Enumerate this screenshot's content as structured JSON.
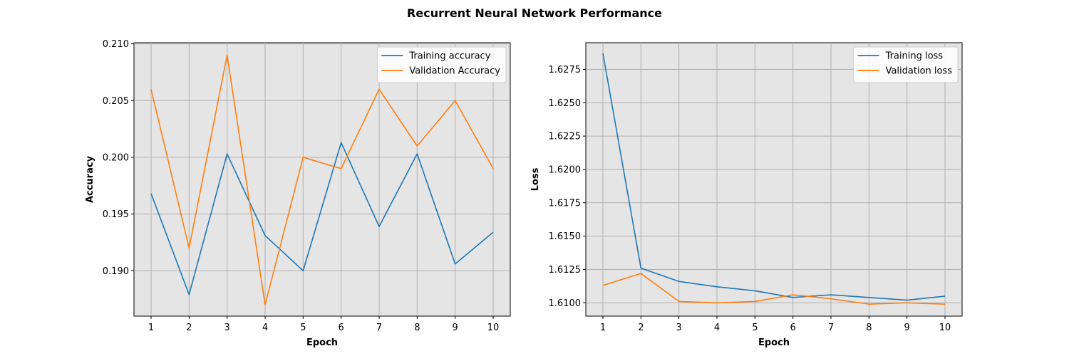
{
  "figure_title": "Recurrent Neural Network Performance",
  "chart_data": [
    {
      "type": "line",
      "title": "",
      "xlabel": "Epoch",
      "ylabel": "Accuracy",
      "x": [
        1,
        2,
        3,
        4,
        5,
        6,
        7,
        8,
        9,
        10
      ],
      "xticks": [
        "1",
        "2",
        "3",
        "4",
        "5",
        "6",
        "7",
        "8",
        "9",
        "10"
      ],
      "xlim": [
        0.55,
        10.45
      ],
      "yticks": [
        "0.190",
        "0.195",
        "0.200",
        "0.205",
        "0.210"
      ],
      "ylim": [
        0.186,
        0.2101
      ],
      "grid": true,
      "legend_position": "top-right",
      "series": [
        {
          "name": "Training accuracy",
          "color": "#1f77b4",
          "values": [
            0.1968,
            0.1879,
            0.2003,
            0.1931,
            0.19,
            0.2013,
            0.1939,
            0.2003,
            0.1906,
            0.1934
          ]
        },
        {
          "name": "Validation Accuracy",
          "color": "#ff7f0e",
          "values": [
            0.206,
            0.192,
            0.209,
            0.187,
            0.2,
            0.199,
            0.206,
            0.201,
            0.205,
            0.199
          ]
        }
      ]
    },
    {
      "type": "line",
      "title": "",
      "xlabel": "Epoch",
      "ylabel": "Loss",
      "x": [
        1,
        2,
        3,
        4,
        5,
        6,
        7,
        8,
        9,
        10
      ],
      "xticks": [
        "1",
        "2",
        "3",
        "4",
        "5",
        "6",
        "7",
        "8",
        "9",
        "10"
      ],
      "xlim": [
        0.55,
        10.45
      ],
      "yticks": [
        "1.6100",
        "1.6125",
        "1.6150",
        "1.6175",
        "1.6200",
        "1.6225",
        "1.6250",
        "1.6275"
      ],
      "ylim": [
        1.609,
        1.6295
      ],
      "grid": true,
      "legend_position": "top-right",
      "series": [
        {
          "name": "Training loss",
          "color": "#1f77b4",
          "values": [
            1.6287,
            1.6126,
            1.6116,
            1.6112,
            1.6109,
            1.6104,
            1.6106,
            1.6104,
            1.6102,
            1.6105
          ]
        },
        {
          "name": "Validation loss",
          "color": "#ff7f0e",
          "values": [
            1.6113,
            1.6122,
            1.6101,
            1.61,
            1.6101,
            1.6106,
            1.6103,
            1.6099,
            1.61,
            1.6099
          ]
        }
      ]
    }
  ]
}
